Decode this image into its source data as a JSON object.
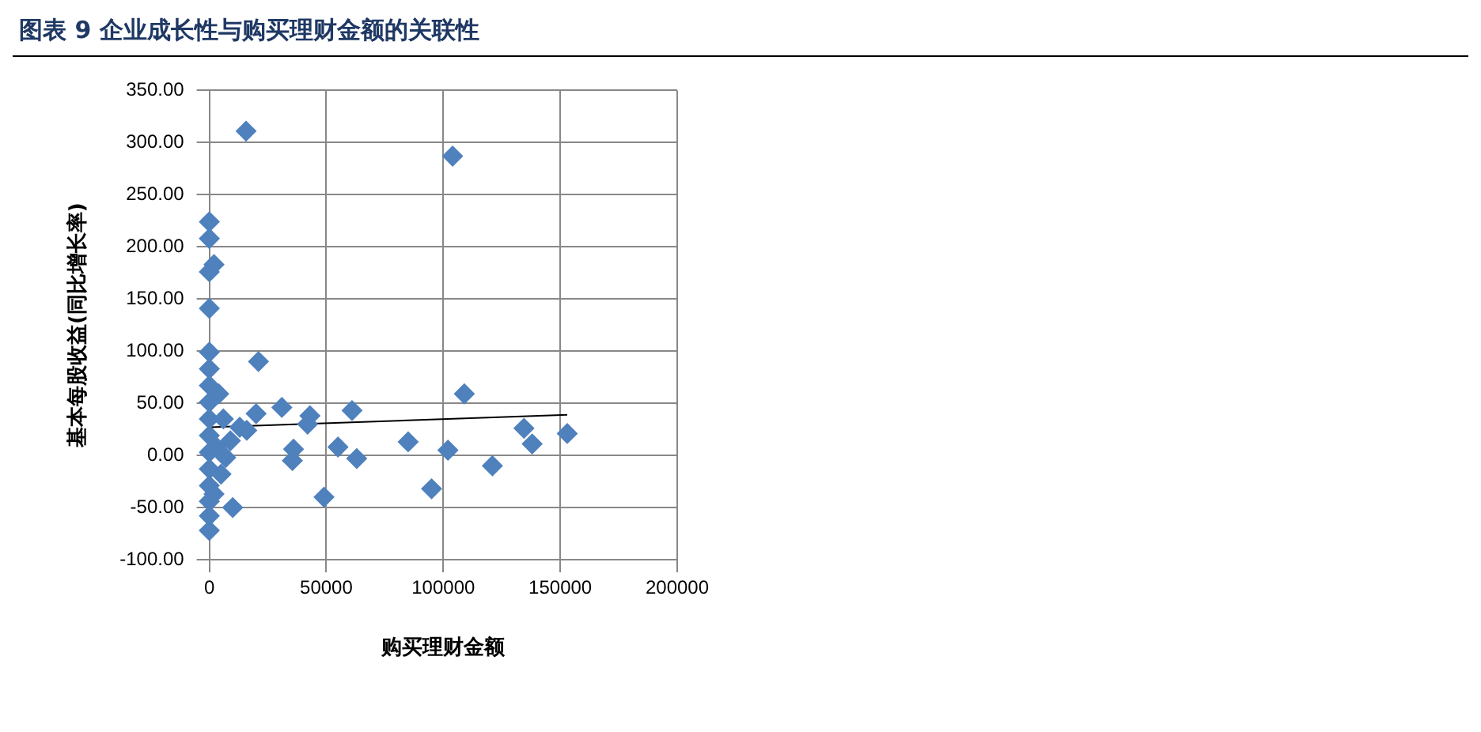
{
  "chart_data": {
    "type": "scatter",
    "title": "图表 9   企业成长性与购买理财金额的关联性",
    "xlabel": "购买理财金额",
    "ylabel": "基本每股收益(同比增长率)",
    "xlim": [
      0,
      200000
    ],
    "xticks": [
      0,
      50000,
      100000,
      150000,
      200000
    ],
    "ylim": [
      -100,
      350
    ],
    "yticks": [
      {
        "value": -100,
        "label": "-100.00"
      },
      {
        "value": -50,
        "label": "-50.00"
      },
      {
        "value": 0,
        "label": "0.00"
      },
      {
        "value": 50,
        "label": "50.00"
      },
      {
        "value": 100,
        "label": "100.00"
      },
      {
        "value": 150,
        "label": "150.00"
      },
      {
        "value": 200,
        "label": "200.00"
      },
      {
        "value": 250,
        "label": "250.00"
      },
      {
        "value": 300,
        "label": "300.00"
      },
      {
        "value": 350,
        "label": "350.00"
      }
    ],
    "grid": true,
    "legend": false,
    "series": [
      {
        "type": "scatter",
        "marker": "diamond",
        "color": "#4f81bd",
        "x": [
          15700,
          104000,
          0,
          0,
          0,
          2000,
          0,
          0,
          21000,
          0,
          0,
          0,
          0,
          0,
          0,
          0,
          0,
          0,
          0,
          0,
          10000,
          20000,
          31000,
          43000,
          42000,
          35500,
          36000,
          61000,
          63000,
          49000,
          55000,
          85000,
          95000,
          102000,
          109000,
          121000,
          134500,
          138000,
          153000,
          4000,
          6000,
          9000,
          7000,
          13000,
          16000,
          3000,
          5000,
          2000
        ],
        "values": [
          311,
          287,
          224,
          208,
          176,
          183,
          141,
          99,
          90,
          83,
          67,
          51,
          35,
          19,
          3,
          -13,
          -29,
          -44,
          -58,
          -72,
          -50,
          40,
          46,
          38,
          30,
          -5,
          6,
          43,
          -3,
          -40,
          8,
          13,
          -32,
          5,
          59,
          -10,
          26,
          11,
          21,
          59,
          35,
          14,
          -2,
          27,
          24,
          8,
          -18,
          -37
        ]
      },
      {
        "type": "line",
        "color": "#000000",
        "x": [
          0,
          153000
        ],
        "values": [
          27,
          39
        ]
      }
    ]
  }
}
